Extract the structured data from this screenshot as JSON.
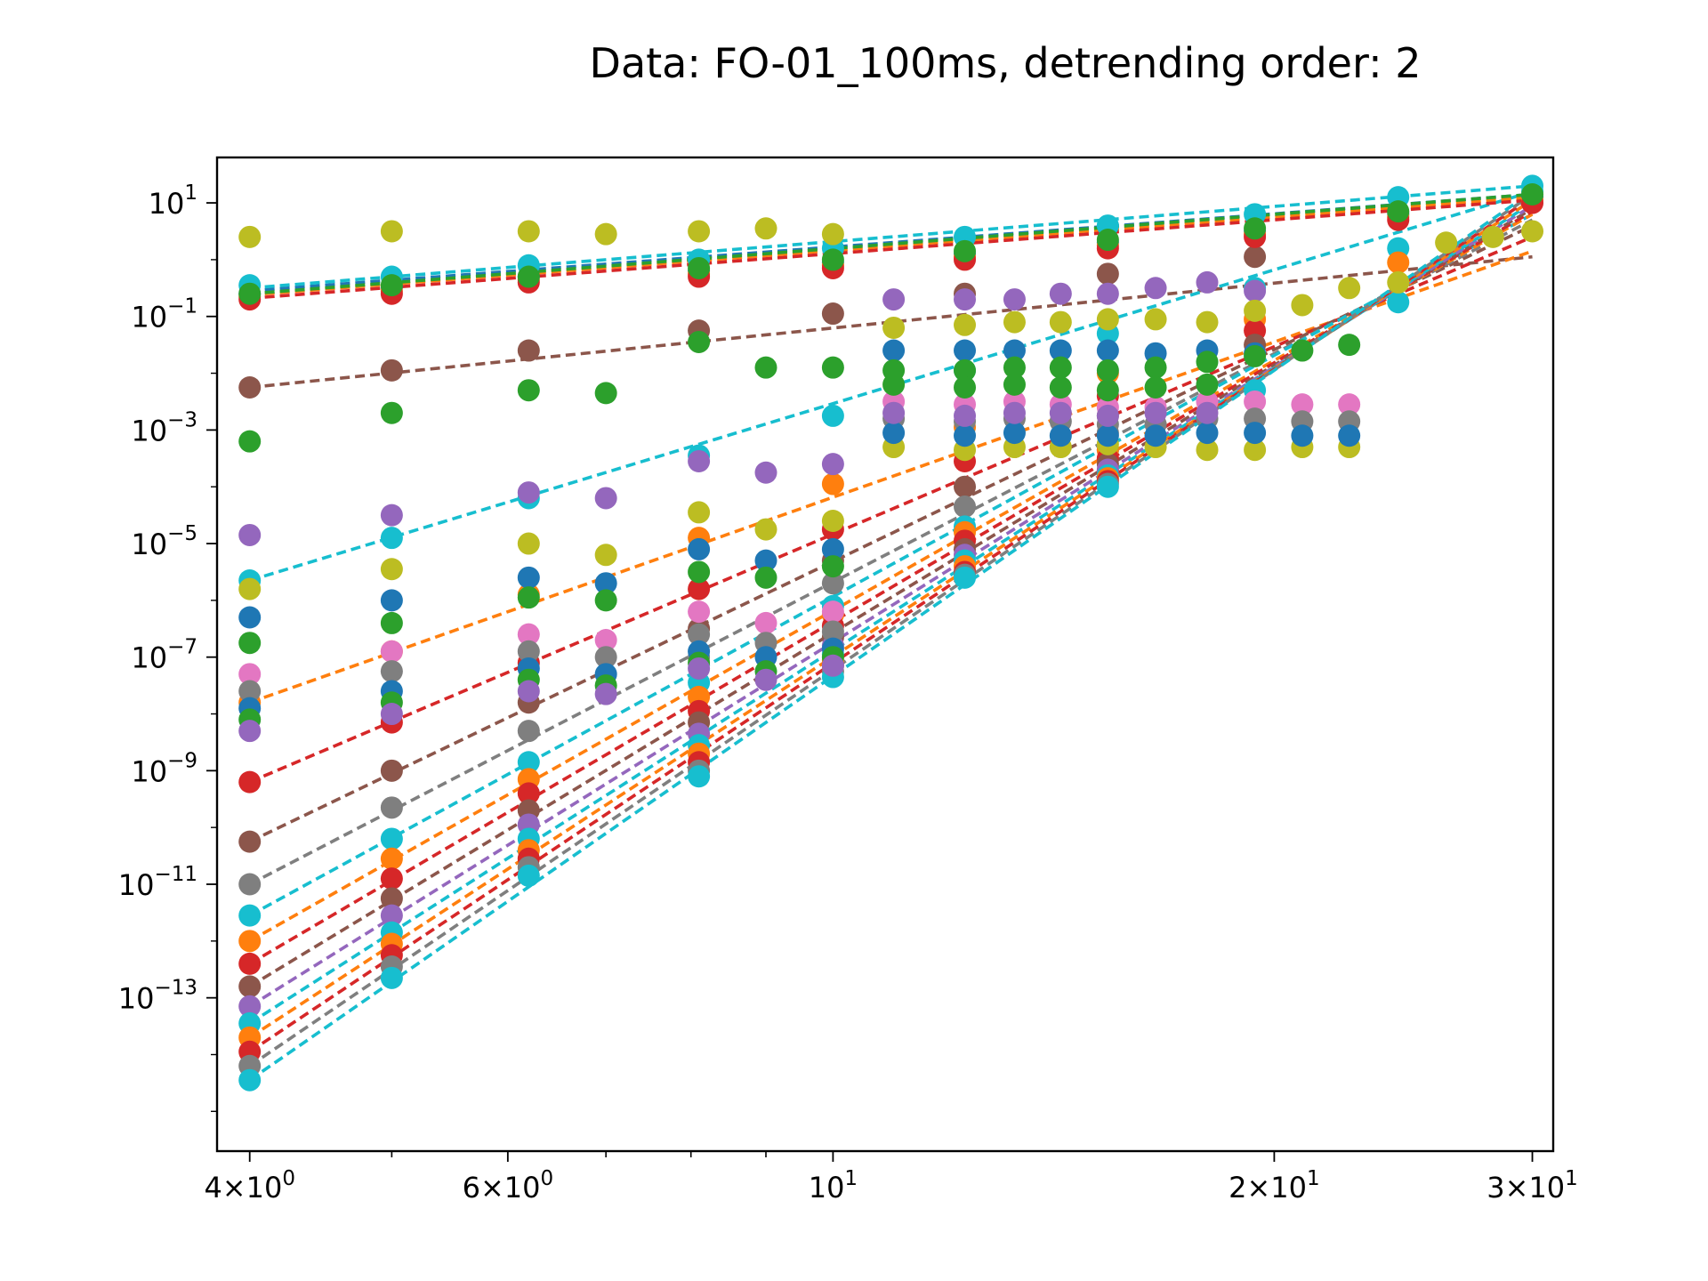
{
  "chart_data": {
    "type": "scatter",
    "title": "Data: FO-01_100ms, detrending order: 2",
    "xlabel": "",
    "ylabel": "",
    "xscale": "log",
    "yscale": "log",
    "xlim": [
      3.8,
      31
    ],
    "ylim_exponent": [
      -15.7,
      1.8
    ],
    "grid": false,
    "legend": "none",
    "x_tick_labels": [
      {
        "value": 4,
        "mantissa": "4",
        "exponent": "0"
      },
      {
        "value": 6,
        "mantissa": "6",
        "exponent": "0"
      },
      {
        "value": 10,
        "mantissa": "",
        "exponent": "1"
      },
      {
        "value": 20,
        "mantissa": "2",
        "exponent": "1"
      },
      {
        "value": 30,
        "mantissa": "3",
        "exponent": "1"
      }
    ],
    "y_tick_labels": [
      {
        "exponent": 1,
        "label_exponent": "1"
      },
      {
        "exponent": -1,
        "label_exponent": "−1"
      },
      {
        "exponent": -3,
        "label_exponent": "−3"
      },
      {
        "exponent": -5,
        "label_exponent": "−5"
      },
      {
        "exponent": -7,
        "label_exponent": "−7"
      },
      {
        "exponent": -9,
        "label_exponent": "−9"
      },
      {
        "exponent": -11,
        "label_exponent": "−11"
      },
      {
        "exponent": -13,
        "label_exponent": "−13"
      }
    ],
    "x": [
      4,
      5,
      6.2,
      7,
      8.1,
      9,
      10,
      11,
      12.3,
      13.3,
      14.3,
      15.4,
      16.6,
      18,
      19.4,
      20.9,
      22.5,
      24.3,
      26.2,
      28.2,
      30
    ],
    "colors": [
      "#1f77b4",
      "#ff7f0e",
      "#2ca02c",
      "#d62728",
      "#9467bd",
      "#8c564b",
      "#e377c2",
      "#7f7f7f",
      "#bcbd22",
      "#17becf"
    ],
    "series": [
      {
        "color": "#8c564b",
        "fit_line": true,
        "x": [
          4,
          5,
          6.2,
          8.1,
          10,
          12.3,
          15.4,
          19.4
        ],
        "log10_y": [
          -2.25,
          -1.95,
          -1.6,
          -1.25,
          -0.95,
          -0.6,
          -0.25,
          0.05
        ],
        "fit_log10": [
          -2.25,
          0.05
        ]
      },
      {
        "color": "#17becf",
        "fit_line": true,
        "x": [
          4,
          5,
          6.2,
          8.1,
          10,
          12.3,
          15.4,
          19.4,
          24.3,
          30
        ],
        "log10_y": [
          -5.65,
          -4.9,
          -4.2,
          -3.45,
          -2.75,
          -1.95,
          -1.3,
          -0.5,
          0.2,
          1.2
        ],
        "fit_log10": [
          -5.65,
          1.2
        ]
      },
      {
        "color": "#ff7f0e",
        "fit_line": true,
        "x": [
          4,
          5,
          6.2,
          8.1,
          10,
          12.3,
          15.4,
          19.4,
          24.3
        ],
        "log10_y": [
          -7.8,
          -6.9,
          -5.9,
          -4.9,
          -3.95,
          -2.95,
          -2.0,
          -1.05,
          -0.05
        ],
        "fit_log10": [
          -7.8,
          0.15
        ]
      },
      {
        "color": "#d62728",
        "fit_line": true,
        "x": [
          4,
          5,
          6.2,
          8.1,
          10,
          12.3,
          15.4,
          19.4
        ],
        "log10_y": [
          -9.2,
          -8.15,
          -7.1,
          -5.8,
          -4.75,
          -3.55,
          -2.4,
          -1.25
        ],
        "fit_log10": [
          -9.2,
          0.4
        ]
      },
      {
        "color": "#8c564b",
        "fit_line": true,
        "x": [
          4,
          5,
          6.2,
          8.1,
          10,
          12.3,
          15.4,
          19.4
        ],
        "log10_y": [
          -10.25,
          -9.0,
          -7.8,
          -6.5,
          -5.3,
          -4.0,
          -2.75,
          -1.5
        ],
        "fit_log10": [
          -10.25,
          0.6
        ]
      },
      {
        "color": "#7f7f7f",
        "fit_line": true,
        "x": [
          4,
          5,
          6.2,
          8.1,
          10,
          12.3,
          15.4
        ],
        "log10_y": [
          -11.0,
          -9.65,
          -8.3,
          -7.0,
          -5.7,
          -4.35,
          -3.05
        ],
        "fit_log10": [
          -11.0,
          0.7
        ]
      },
      {
        "color": "#17becf",
        "fit_line": true,
        "x": [
          4,
          5,
          6.2,
          8.1,
          10,
          12.3,
          15.4
        ],
        "log10_y": [
          -11.55,
          -10.2,
          -8.85,
          -7.45,
          -6.1,
          -4.7,
          -3.35
        ],
        "fit_log10": [
          -11.55,
          0.8
        ]
      },
      {
        "color": "#ff7f0e",
        "fit_line": true,
        "x": [
          4,
          5,
          6.2,
          8.1,
          10,
          12.3,
          15.4
        ],
        "log10_y": [
          -12.0,
          -10.55,
          -9.15,
          -7.7,
          -6.25,
          -4.8,
          -3.35
        ],
        "fit_log10": [
          -12.0,
          0.8
        ]
      },
      {
        "color": "#d62728",
        "fit_line": true,
        "x": [
          4,
          5,
          6.2,
          8.1,
          10,
          12.3,
          15.4
        ],
        "log10_y": [
          -12.4,
          -10.9,
          -9.4,
          -7.95,
          -6.45,
          -4.95,
          -3.5
        ],
        "fit_log10": [
          -12.4,
          0.85
        ]
      },
      {
        "color": "#8c564b",
        "fit_line": true,
        "x": [
          4,
          5,
          6.2,
          8.1,
          10,
          12.3,
          15.4
        ],
        "log10_y": [
          -12.8,
          -11.25,
          -9.7,
          -8.15,
          -6.65,
          -5.1,
          -3.6
        ],
        "fit_log10": [
          -12.8,
          0.9
        ]
      },
      {
        "color": "#9467bd",
        "fit_line": true,
        "x": [
          4,
          5,
          6.2,
          8.1,
          10,
          12.3,
          15.4
        ],
        "log10_y": [
          -13.15,
          -11.55,
          -9.95,
          -8.35,
          -6.8,
          -5.2,
          -3.7
        ],
        "fit_log10": [
          -13.15,
          0.95
        ]
      },
      {
        "color": "#17becf",
        "fit_line": true,
        "x": [
          4,
          5,
          6.2,
          8.1,
          10,
          12.3,
          15.4
        ],
        "log10_y": [
          -13.45,
          -11.85,
          -10.2,
          -8.55,
          -6.95,
          -5.3,
          -3.8
        ],
        "fit_log10": [
          -13.45,
          1.0
        ]
      },
      {
        "color": "#ff7f0e",
        "fit_line": true,
        "x": [
          4,
          5,
          6.2,
          8.1,
          10,
          12.3,
          15.4
        ],
        "log10_y": [
          -13.7,
          -12.05,
          -10.4,
          -8.7,
          -7.05,
          -5.4,
          -3.85
        ],
        "fit_log10": [
          -13.7,
          1.05
        ]
      },
      {
        "color": "#d62728",
        "fit_line": true,
        "x": [
          4,
          5,
          6.2,
          8.1,
          10,
          12.3,
          15.4
        ],
        "log10_y": [
          -13.95,
          -12.25,
          -10.55,
          -8.85,
          -7.15,
          -5.5,
          -3.9
        ],
        "fit_log10": [
          -13.95,
          1.1
        ]
      },
      {
        "color": "#7f7f7f",
        "fit_line": true,
        "x": [
          4,
          5,
          6.2,
          8.1,
          10,
          12.3,
          15.4
        ],
        "log10_y": [
          -14.2,
          -12.45,
          -10.7,
          -9.0,
          -7.25,
          -5.55,
          -3.95
        ],
        "fit_log10": [
          -14.2,
          1.15
        ]
      },
      {
        "color": "#17becf",
        "fit_line": true,
        "x": [
          4,
          5,
          6.2,
          8.1,
          10,
          12.3,
          15.4,
          19.4,
          24.3
        ],
        "log10_y": [
          -14.45,
          -12.65,
          -10.85,
          -9.1,
          -7.35,
          -5.6,
          -4.0,
          -2.3,
          -0.75
        ],
        "fit_log10": [
          -14.45,
          1.2
        ]
      },
      {
        "color": "#1f77b4",
        "fit_line": true,
        "x": [
          4,
          5,
          6.2,
          8.1,
          10,
          12.3,
          15.4,
          19.4,
          24.3,
          30
        ],
        "log10_y": [
          -0.6,
          -0.5,
          -0.3,
          -0.2,
          -0.05,
          0.1,
          0.3,
          0.5,
          0.8,
          1.1
        ],
        "fit_log10": [
          -0.55,
          1.15
        ]
      },
      {
        "color": "#ff7f0e",
        "fit_line": true,
        "x": [
          4,
          5,
          6.2,
          8.1,
          10,
          12.3,
          15.4,
          19.4,
          24.3,
          30
        ],
        "log10_y": [
          -0.65,
          -0.55,
          -0.35,
          -0.25,
          -0.1,
          0.05,
          0.25,
          0.45,
          0.75,
          1.05
        ],
        "fit_log10": [
          -0.62,
          1.1
        ]
      },
      {
        "color": "#d62728",
        "fit_line": true,
        "x": [
          4,
          5,
          6.2,
          8.1,
          10,
          12.3,
          15.4,
          19.4,
          24.3,
          30
        ],
        "log10_y": [
          -0.7,
          -0.6,
          -0.4,
          -0.3,
          -0.15,
          0.0,
          0.2,
          0.4,
          0.7,
          1.0
        ],
        "fit_log10": [
          -0.68,
          1.05
        ]
      },
      {
        "color": "#17becf",
        "fit_line": true,
        "x": [
          4,
          5,
          6.2,
          8.1,
          10,
          12.3,
          15.4,
          19.4,
          24.3,
          30
        ],
        "log10_y": [
          -0.45,
          -0.3,
          -0.1,
          0.0,
          0.2,
          0.4,
          0.6,
          0.8,
          1.1,
          1.3
        ],
        "fit_log10": [
          -0.5,
          1.3
        ]
      },
      {
        "color": "#2ca02c",
        "fit_line": true,
        "x": [
          4,
          5,
          6.2,
          8.1,
          10,
          12.3,
          15.4,
          19.4,
          24.3,
          30
        ],
        "log10_y": [
          -0.6,
          -0.45,
          -0.3,
          -0.15,
          0.0,
          0.15,
          0.35,
          0.55,
          0.85,
          1.15
        ],
        "fit_log10": [
          -0.6,
          1.15
        ]
      },
      {
        "color": "#9467bd",
        "fit_line": false,
        "x": [
          4,
          5,
          6.2,
          7,
          8.1,
          9,
          10,
          11,
          12.3,
          13.3,
          14.3,
          15.4,
          16.6,
          18,
          19.4
        ],
        "log10_y": [
          -4.85,
          -4.5,
          -4.1,
          -4.2,
          -3.55,
          -3.75,
          -3.6,
          -0.7,
          -0.7,
          -0.7,
          -0.6,
          -0.6,
          -0.5,
          -0.4,
          -0.55
        ]
      },
      {
        "color": "#2ca02c",
        "fit_line": false,
        "x": [
          4,
          5,
          6.2,
          7,
          8.1,
          9,
          10
        ],
        "log10_y": [
          -3.2,
          -2.7,
          -2.3,
          -2.35,
          -1.45,
          -1.9,
          -1.9
        ]
      },
      {
        "color": "#bcbd22",
        "fit_line": false,
        "x": [
          4,
          5,
          6.2,
          7,
          8.1,
          9,
          10,
          11,
          12.3,
          13.3,
          14.3,
          15.4,
          16.6,
          18,
          19.4,
          20.9,
          22.5,
          24.3,
          26.2,
          28.2,
          30
        ],
        "log10_y": [
          0.4,
          0.5,
          0.5,
          0.45,
          0.5,
          0.55,
          0.45,
          -1.2,
          -1.15,
          -1.1,
          -1.1,
          -1.05,
          -1.05,
          -1.1,
          -0.9,
          -0.8,
          -0.5,
          -0.4,
          0.3,
          0.4,
          0.5
        ]
      },
      {
        "color": "#bcbd22",
        "fit_line": false,
        "x": [
          4,
          5,
          6.2,
          7,
          8.1,
          9,
          10,
          11,
          12.3,
          13.3,
          14.3,
          15.4,
          16.6,
          18,
          19.4,
          20.9,
          22.5
        ],
        "log10_y": [
          -5.8,
          -5.45,
          -5.0,
          -5.2,
          -4.45,
          -4.75,
          -4.6,
          -3.3,
          -3.35,
          -3.3,
          -3.3,
          -3.25,
          -3.3,
          -3.35,
          -3.35,
          -3.3,
          -3.3
        ]
      },
      {
        "color": "#1f77b4",
        "fit_line": false,
        "x": [
          4,
          5,
          6.2,
          7,
          8.1,
          9,
          10,
          11,
          12.3,
          13.3,
          14.3,
          15.4,
          16.6,
          18,
          19.4
        ],
        "log10_y": [
          -6.3,
          -6.0,
          -5.6,
          -5.7,
          -5.1,
          -5.3,
          -5.1,
          -1.6,
          -1.6,
          -1.6,
          -1.6,
          -1.6,
          -1.65,
          -1.6,
          -1.65
        ]
      },
      {
        "color": "#2ca02c",
        "fit_line": false,
        "x": [
          4,
          5,
          6.2,
          7,
          8.1,
          9,
          10,
          11,
          12.3,
          13.3,
          14.3,
          15.4,
          16.6,
          18,
          19.4,
          20.9,
          22.5
        ],
        "log10_y": [
          -6.75,
          -6.4,
          -5.95,
          -6.0,
          -5.5,
          -5.6,
          -5.4,
          -1.95,
          -1.95,
          -1.9,
          -1.9,
          -1.95,
          -1.9,
          -1.8,
          -1.7,
          -1.6,
          -1.5
        ]
      },
      {
        "color": "#e377c2",
        "fit_line": false,
        "x": [
          4,
          5,
          6.2,
          7,
          8.1,
          9,
          10,
          11,
          12.3,
          13.3,
          14.3,
          15.4,
          16.6,
          18,
          19.4,
          20.9,
          22.5
        ],
        "log10_y": [
          -7.3,
          -6.9,
          -6.6,
          -6.7,
          -6.2,
          -6.4,
          -6.2,
          -2.5,
          -2.55,
          -2.5,
          -2.55,
          -2.6,
          -2.6,
          -2.5,
          -2.5,
          -2.55,
          -2.55
        ]
      },
      {
        "color": "#7f7f7f",
        "fit_line": false,
        "x": [
          4,
          5,
          6.2,
          7,
          8.1,
          9,
          10,
          11,
          12.3,
          13.3,
          14.3,
          15.4,
          16.6,
          18,
          19.4,
          20.9,
          22.5
        ],
        "log10_y": [
          -7.6,
          -7.25,
          -6.9,
          -7.0,
          -6.6,
          -6.75,
          -6.55,
          -2.8,
          -2.85,
          -2.8,
          -2.85,
          -2.9,
          -2.9,
          -2.8,
          -2.8,
          -2.85,
          -2.85
        ]
      },
      {
        "color": "#1f77b4",
        "fit_line": false,
        "x": [
          4,
          5,
          6.2,
          7,
          8.1,
          9,
          10,
          11,
          12.3,
          13.3,
          14.3,
          15.4,
          16.6,
          18,
          19.4,
          20.9,
          22.5
        ],
        "log10_y": [
          -7.9,
          -7.6,
          -7.2,
          -7.3,
          -6.9,
          -7.0,
          -6.85,
          -3.05,
          -3.1,
          -3.05,
          -3.1,
          -3.1,
          -3.1,
          -3.05,
          -3.05,
          -3.1,
          -3.1
        ]
      },
      {
        "color": "#2ca02c",
        "fit_line": false,
        "x": [
          4,
          5,
          6.2,
          7,
          8.1,
          9,
          10,
          11,
          12.3,
          13.3,
          14.3,
          15.4,
          16.6,
          18
        ],
        "log10_y": [
          -8.1,
          -7.8,
          -7.4,
          -7.5,
          -7.1,
          -7.25,
          -7.0,
          -2.2,
          -2.25,
          -2.2,
          -2.25,
          -2.3,
          -2.25,
          -2.2
        ]
      },
      {
        "color": "#9467bd",
        "fit_line": false,
        "x": [
          4,
          5,
          6.2,
          7,
          8.1,
          9,
          10,
          11,
          12.3,
          13.3,
          14.3,
          15.4,
          16.6,
          18
        ],
        "log10_y": [
          -8.3,
          -8.0,
          -7.6,
          -7.65,
          -7.2,
          -7.4,
          -7.15,
          -2.7,
          -2.75,
          -2.7,
          -2.7,
          -2.75,
          -2.7,
          -2.7
        ]
      }
    ]
  }
}
